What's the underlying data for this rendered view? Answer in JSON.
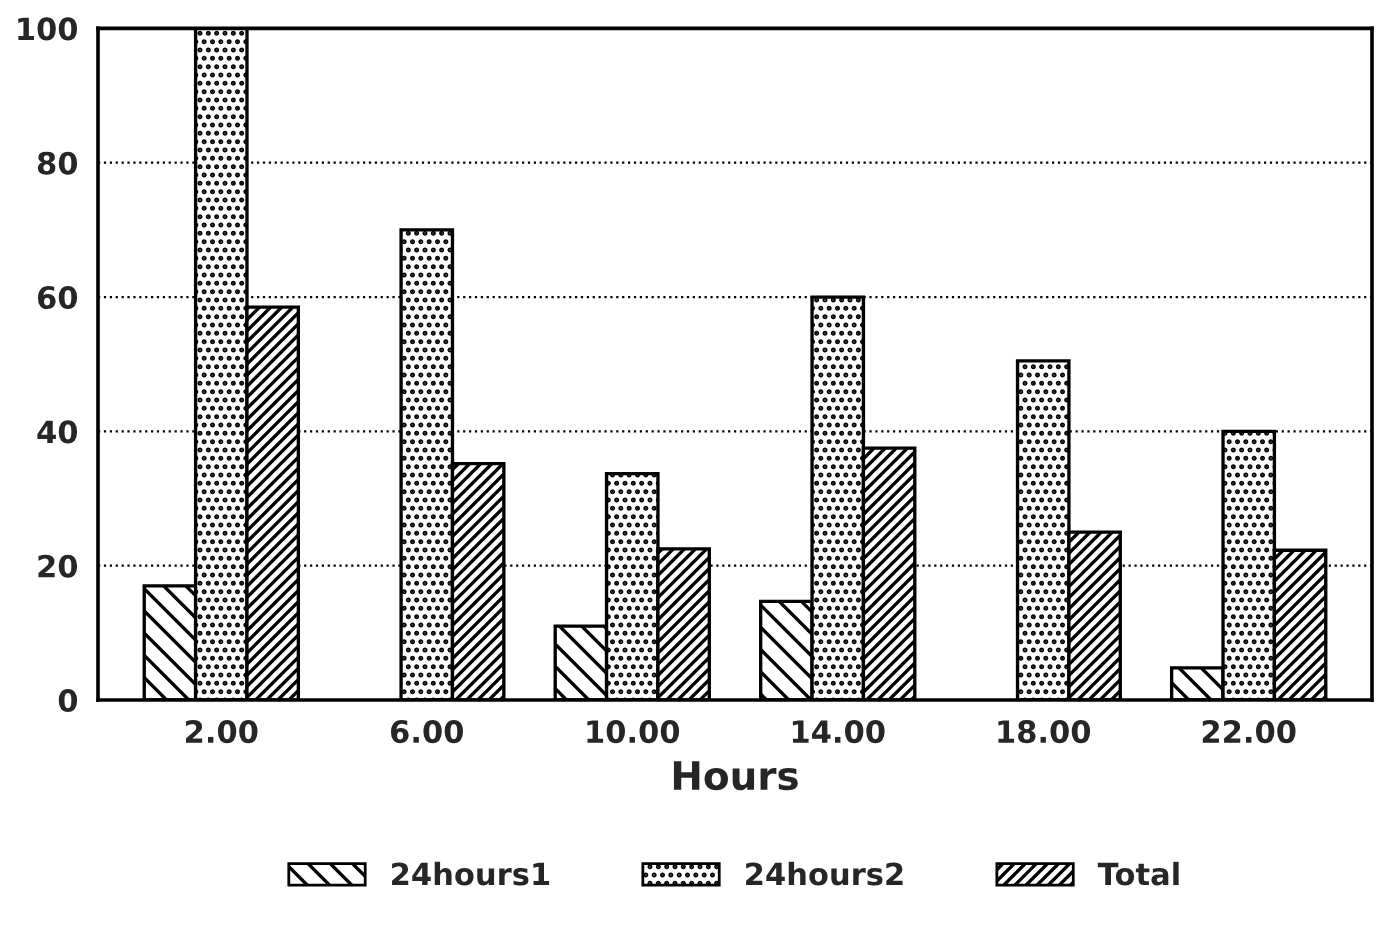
{
  "chart_data": {
    "type": "bar",
    "xlabel": "Hours",
    "categories": [
      "2.00",
      "6.00",
      "10.00",
      "14.00",
      "18.00",
      "22.00"
    ],
    "series": [
      {
        "name": "24hours1",
        "color": "#000000",
        "values": [
          17,
          null,
          11,
          14.7,
          null,
          4.8
        ]
      },
      {
        "name": "24hours2",
        "color": "#000000",
        "values": [
          100,
          70,
          33.7,
          60,
          50.5,
          40
        ]
      },
      {
        "name": "Total",
        "color": "#000000",
        "values": [
          58.5,
          35.2,
          22.5,
          37.5,
          25,
          22.3
        ]
      }
    ],
    "ylim": [
      0,
      100
    ],
    "yticks": [
      0,
      20,
      40,
      60,
      80,
      100
    ],
    "grid": "y",
    "legend": "bottom"
  }
}
